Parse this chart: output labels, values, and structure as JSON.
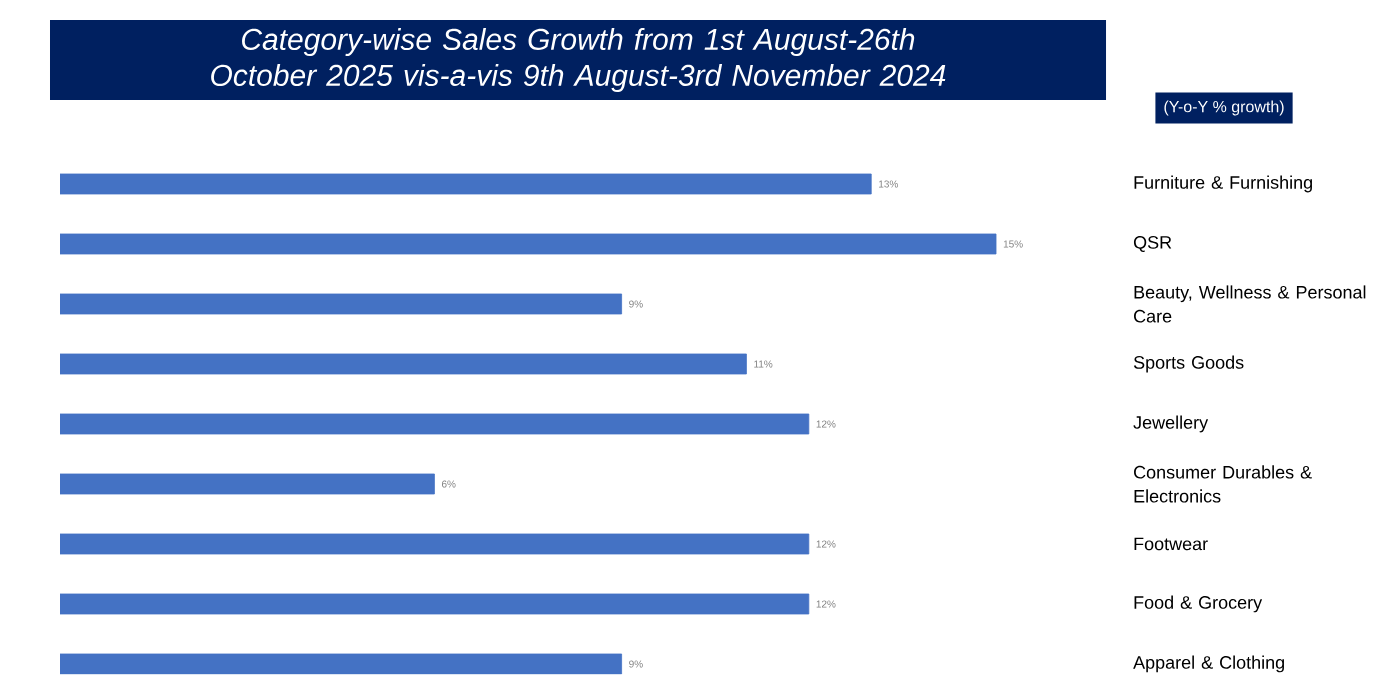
{
  "chart_data": {
    "type": "bar",
    "orientation": "horizontal",
    "title": "Category-wise Sales Growth from 1st August-26th October 2025 vis-a-vis 9th August-3rd November 2024",
    "annotations": [
      "(Y-o-Y % growth)"
    ],
    "categories": [
      "Furniture & Furnishing",
      "QSR",
      "Beauty, Wellness & Personal Care",
      "Sports Goods",
      "Jewellery",
      "Consumer Durables & Electronics",
      "Footwear",
      "Food & Grocery",
      "Apparel & Clothing"
    ],
    "values": [
      13,
      15,
      9,
      11,
      12,
      6,
      12,
      12,
      9
    ],
    "value_labels": [
      "13%",
      "15%",
      "9%",
      "11%",
      "12%",
      "6%",
      "12%",
      "12%",
      "9%"
    ],
    "color": "#4472c4"
  }
}
